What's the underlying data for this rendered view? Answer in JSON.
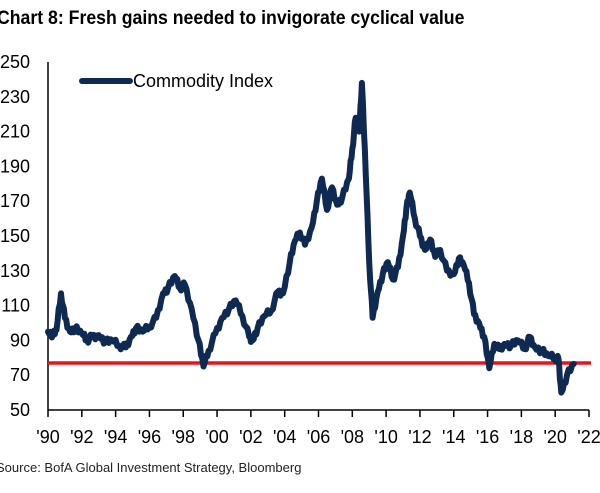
{
  "title": "Chart 8: Fresh gains needed to invigorate cyclical value",
  "source": "Source: BofA Global Investment Strategy, Bloomberg",
  "colors": {
    "series": "#0f2a52",
    "reference": "#e8141b",
    "axis": "#000000"
  },
  "chart_data": {
    "type": "line",
    "title": "Chart 8: Fresh gains needed to invigorate cyclical value",
    "xlabel": "",
    "ylabel": "",
    "xlim": [
      1990,
      2022
    ],
    "ylim": [
      50,
      250
    ],
    "grid": false,
    "legend_position": "top-left",
    "x_tick_labels": [
      "'90",
      "'92",
      "'94",
      "'96",
      "'98",
      "'00",
      "'02",
      "'04",
      "'06",
      "'08",
      "'10",
      "'12",
      "'14",
      "'16",
      "'18",
      "'20",
      "'22"
    ],
    "y_tick_labels": [
      "50",
      "70",
      "90",
      "110",
      "130",
      "150",
      "170",
      "190",
      "210",
      "230",
      "250"
    ],
    "reference_line": {
      "value": 77
    },
    "series": [
      {
        "name": "Commodity Index",
        "x": [
          1990.0,
          1990.3,
          1990.5,
          1990.77,
          1991.0,
          1991.3,
          1991.6,
          1992.0,
          1992.3,
          1992.6,
          1993.0,
          1993.4,
          1993.8,
          1994.2,
          1994.6,
          1994.9,
          1995.2,
          1995.6,
          1996.0,
          1996.4,
          1996.8,
          1997.1,
          1997.5,
          1997.8,
          1998.1,
          1998.5,
          1998.9,
          1999.2,
          1999.5,
          1999.9,
          2000.3,
          2000.7,
          2001.1,
          2001.5,
          2001.9,
          2002.1,
          2002.4,
          2002.8,
          2003.2,
          2003.6,
          2003.9,
          2004.3,
          2004.6,
          2004.9,
          2005.2,
          2005.6,
          2005.9,
          2006.2,
          2006.5,
          2006.8,
          2007.1,
          2007.4,
          2007.8,
          2008.0,
          2008.2,
          2008.4,
          2008.57,
          2008.8,
          2009.0,
          2009.2,
          2009.5,
          2009.8,
          2010.1,
          2010.4,
          2010.7,
          2011.0,
          2011.2,
          2011.4,
          2011.7,
          2012.0,
          2012.3,
          2012.6,
          2012.9,
          2013.2,
          2013.6,
          2014.0,
          2014.3,
          2014.6,
          2014.9,
          2015.2,
          2015.5,
          2015.8,
          2016.1,
          2016.4,
          2016.7,
          2017.0,
          2017.4,
          2017.8,
          2018.2,
          2018.5,
          2018.8,
          2019.2,
          2019.6,
          2020.0,
          2020.2,
          2020.36,
          2020.7,
          2021.1
        ],
        "y": [
          95,
          93,
          96,
          117,
          103,
          95,
          97,
          94,
          90,
          92,
          93,
          89,
          90,
          87,
          86,
          92,
          97,
          95,
          98,
          103,
          117,
          120,
          127,
          120,
          122,
          108,
          90,
          75,
          84,
          94,
          103,
          108,
          113,
          104,
          92,
          90,
          97,
          104,
          107,
          118,
          117,
          135,
          147,
          152,
          145,
          155,
          170,
          183,
          165,
          178,
          168,
          172,
          183,
          200,
          218,
          210,
          238,
          185,
          135,
          103,
          118,
          128,
          135,
          125,
          132,
          150,
          166,
          175,
          160,
          150,
          142,
          148,
          138,
          142,
          130,
          128,
          137,
          133,
          123,
          105,
          100,
          92,
          74,
          88,
          85,
          88,
          87,
          90,
          85,
          92,
          86,
          84,
          81,
          80,
          79,
          60,
          70,
          76.5
        ]
      }
    ]
  }
}
